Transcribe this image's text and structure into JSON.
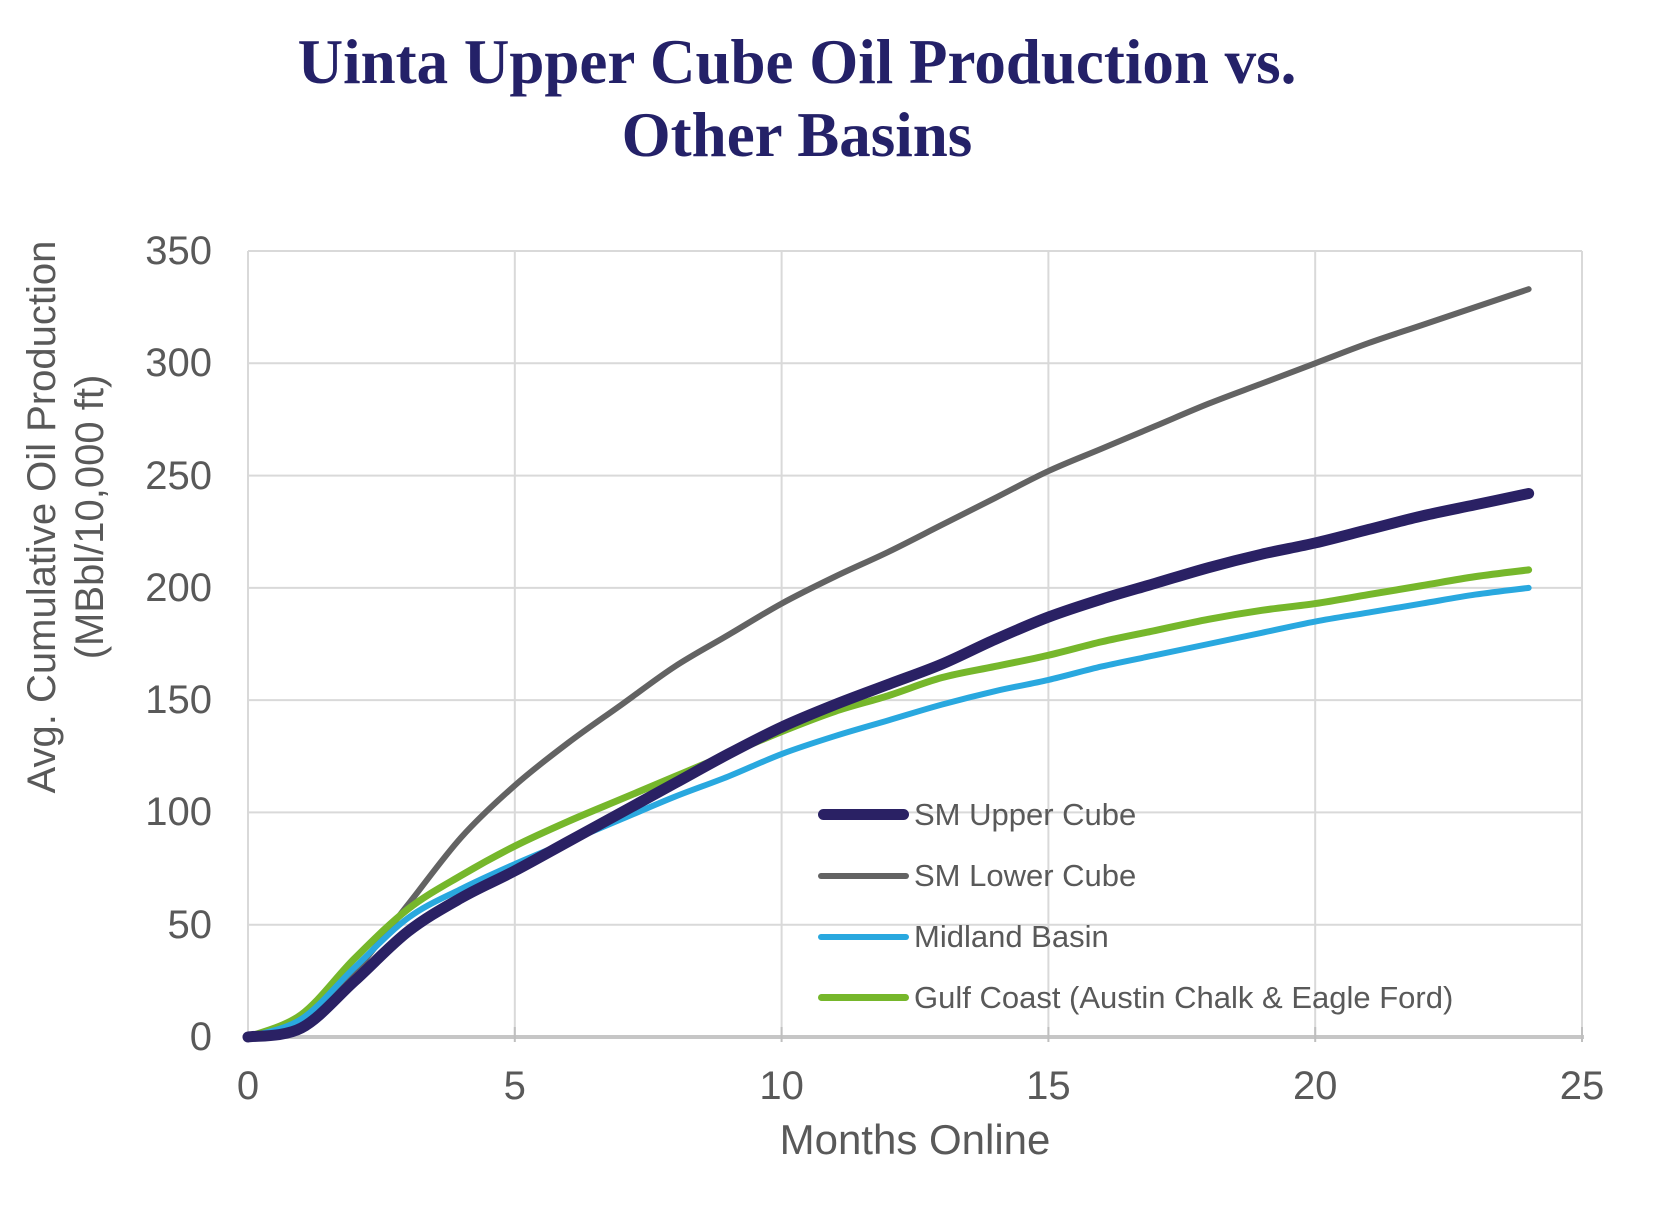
{
  "title": {
    "lines": [
      "Uinta Upper Cube Oil Production vs.",
      "Other Basins"
    ],
    "color": "#242168"
  },
  "chart_data": {
    "type": "line",
    "x": [
      0,
      1,
      2,
      3,
      4,
      5,
      6,
      7,
      8,
      9,
      10,
      11,
      12,
      13,
      14,
      15,
      16,
      17,
      18,
      19,
      20,
      21,
      22,
      23,
      24
    ],
    "series": [
      {
        "name": "SM Upper Cube",
        "color": "#2A2164",
        "line_width": 11,
        "values": [
          0,
          4,
          25,
          47,
          62,
          74,
          87,
          100,
          113,
          126,
          138,
          148,
          157,
          166,
          177,
          187,
          195,
          202,
          209,
          215,
          220,
          226,
          232,
          237,
          242
        ]
      },
      {
        "name": "SM Lower Cube",
        "color": "#636363",
        "line_width": 6,
        "values": [
          0,
          6,
          29,
          59,
          89,
          112,
          131,
          148,
          165,
          179,
          193,
          205,
          216,
          228,
          240,
          252,
          262,
          272,
          282,
          291,
          300,
          309,
          317,
          325,
          333
        ]
      },
      {
        "name": "Midland Basin",
        "color": "#29A8DF",
        "line_width": 6,
        "values": [
          0,
          8,
          31,
          53,
          66,
          77,
          87,
          97,
          107,
          116,
          126,
          134,
          141,
          148,
          154,
          159,
          165,
          170,
          175,
          180,
          185,
          189,
          193,
          197,
          200
        ]
      },
      {
        "name": "Gulf Coast (Austin Chalk & Eagle Ford)",
        "color": "#76B72B",
        "line_width": 7,
        "values": [
          0,
          10,
          35,
          57,
          72,
          85,
          96,
          106,
          116,
          126,
          136,
          145,
          152,
          160,
          165,
          170,
          176,
          181,
          186,
          190,
          193,
          197,
          201,
          205,
          208
        ]
      }
    ],
    "draw_order": [
      1,
      3,
      2,
      0
    ],
    "title": "Uinta Upper Cube Oil Production vs. Other Basins",
    "xlabel": "Months Online",
    "ylabel_lines": [
      "Avg. Cumulative Oil Production",
      "(MBbl/10,000 ft)"
    ],
    "xlim": [
      0,
      25
    ],
    "ylim": [
      0,
      350
    ],
    "xticks": [
      0,
      5,
      10,
      15,
      20,
      25
    ],
    "yticks": [
      0,
      50,
      100,
      150,
      200,
      250,
      300,
      350
    ],
    "grid": true,
    "legend_position": "inside lower right",
    "colors": {
      "gridline": "#D9D9D9",
      "axis_line": "#C6C6C6",
      "tick_stub": "#BFBFBF",
      "text": "#595959"
    }
  }
}
